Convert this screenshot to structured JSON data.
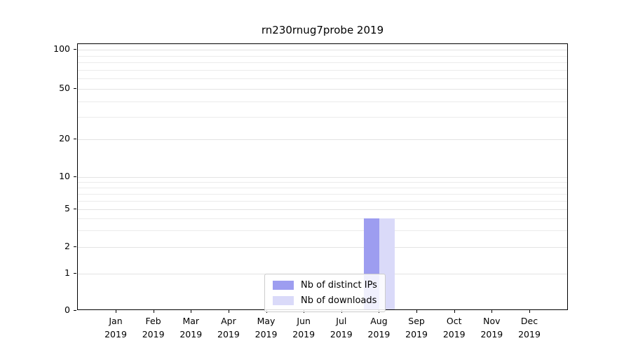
{
  "chart_data": {
    "type": "bar",
    "title": "rn230rnug7probe 2019",
    "xlabel": "",
    "ylabel": "",
    "yscale": "symlog",
    "ylim": [
      0,
      110
    ],
    "grid": true,
    "legend_position": "lower center",
    "year_label": "2019",
    "categories": [
      "Jan",
      "Feb",
      "Mar",
      "Apr",
      "May",
      "Jun",
      "Jul",
      "Aug",
      "Sep",
      "Oct",
      "Nov",
      "Dec"
    ],
    "yticks": [
      0,
      1,
      2,
      5,
      10,
      20,
      50,
      100
    ],
    "ytick_labels": [
      "0",
      "1",
      "2",
      "5",
      "10",
      "20",
      "50",
      "100"
    ],
    "minor_gridlines": [
      3,
      4,
      6,
      7,
      8,
      9,
      30,
      40,
      60,
      70,
      80,
      90
    ],
    "series": [
      {
        "name": "Nb of distinct IPs",
        "color": "#9d9df0",
        "values": [
          0,
          0,
          0,
          0,
          0,
          0,
          0,
          4,
          0,
          0,
          0,
          0
        ]
      },
      {
        "name": "Nb of downloads",
        "color": "#dadaf9",
        "values": [
          0,
          0,
          0,
          0,
          0,
          0,
          0,
          4,
          0,
          0,
          0,
          0
        ]
      }
    ]
  }
}
